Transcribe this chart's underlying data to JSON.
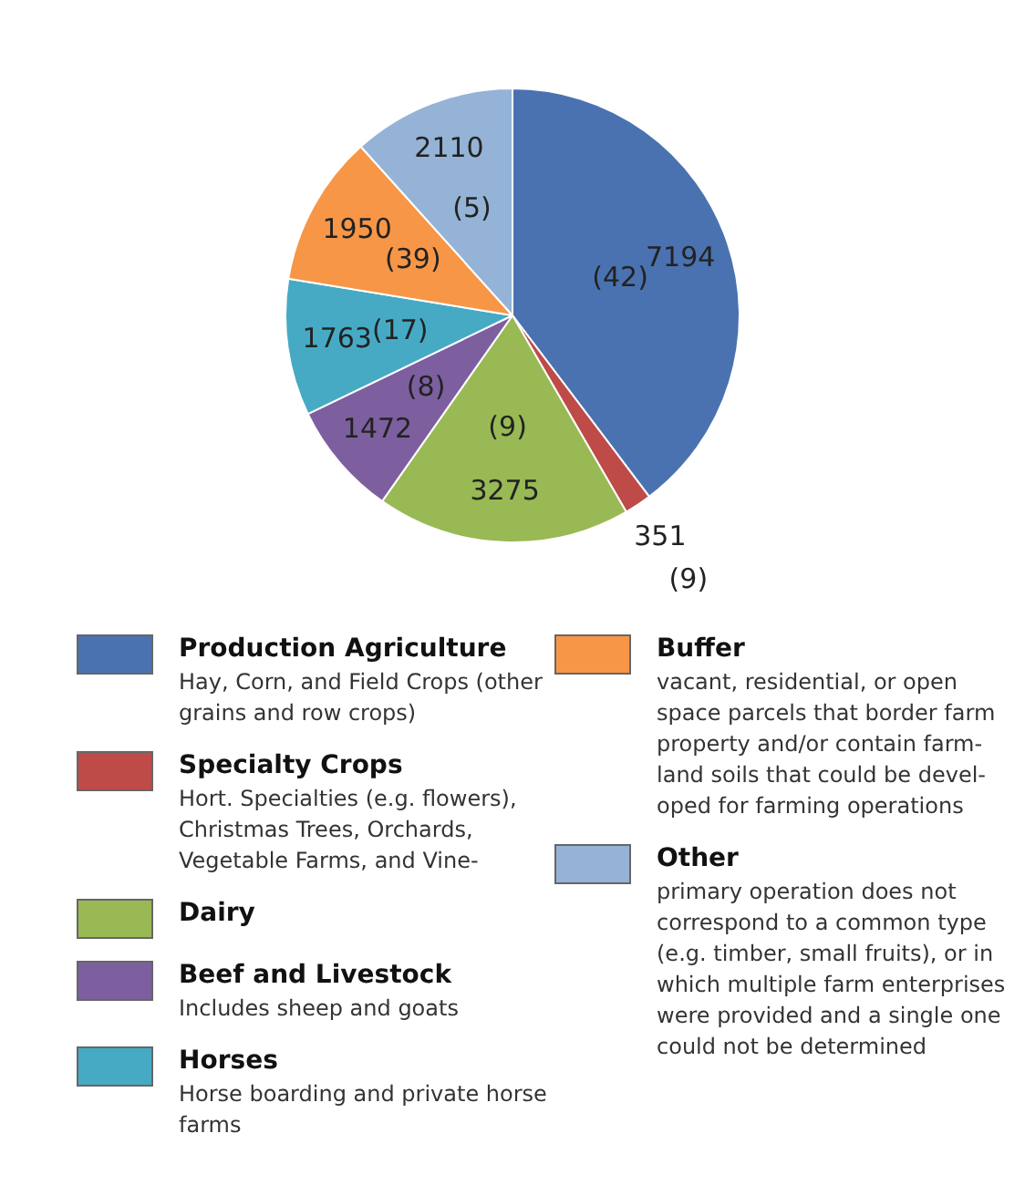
{
  "chart_data": {
    "type": "pie",
    "categories": [
      "Production Agriculture",
      "Specialty Crops",
      "Dairy",
      "Beef and Livestock",
      "Horses",
      "Buffer",
      "Other"
    ],
    "values": [
      7194,
      351,
      3275,
      1472,
      1763,
      1950,
      2110
    ],
    "colors": [
      "#4a72b0",
      "#be4b48",
      "#98b954",
      "#7d5fa0",
      "#46aac5",
      "#f79646",
      "#94b3d6"
    ],
    "data_labels": true,
    "legend": "bottom",
    "annotations": [
      {
        "text": "(42)",
        "x": "Production Agriculture"
      },
      {
        "text": "(9)",
        "x": "Specialty Crops"
      },
      {
        "text": "(9)",
        "x": "Dairy"
      },
      {
        "text": "(8)",
        "x": "Beef and Livestock"
      },
      {
        "text": "(17)",
        "x": "Horses"
      },
      {
        "text": "(39)",
        "x": "Buffer"
      },
      {
        "text": "(5)",
        "x": "Other"
      },
      {
        "text": "Hay, Corn, and Field Crops (other grains and row crops)",
        "x": "Production Agriculture"
      },
      {
        "text": "Hort. Specialties (e.g. flowers), Christmas Trees, Orchards, Vegetable Farms, and Vine-",
        "x": "Specialty Crops"
      },
      {
        "text": "Includes sheep and goats",
        "x": "Beef and Livestock"
      },
      {
        "text": "Horse boarding and private horse farms",
        "x": "Horses"
      },
      {
        "text": "vacant, residential, or open space parcels that border farm property and/or contain farm-land soils that could be devel-oped for farming operations",
        "x": "Buffer"
      },
      {
        "text": "primary operation does not correspond to a common type (e.g. timber, small fruits), or in which multiple farm enterprises were provided and a single one could not be determined",
        "x": "Other"
      }
    ]
  }
}
